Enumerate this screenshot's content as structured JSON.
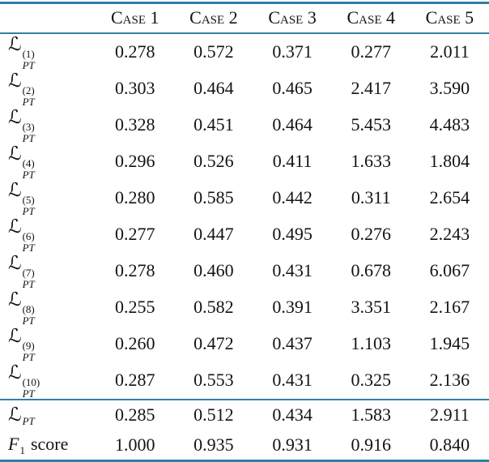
{
  "accent_rule_color": "#2e81a4",
  "table": {
    "columns": [
      "Case 1",
      "Case 2",
      "Case 3",
      "Case 4",
      "Case 5"
    ],
    "corner_label": "",
    "rows": [
      {
        "label": {
          "base": "ℒ",
          "base_style": "script",
          "sub": "PT",
          "sup": "(1)"
        },
        "values": [
          "0.278",
          "0.572",
          "0.371",
          "0.277",
          "2.011"
        ]
      },
      {
        "label": {
          "base": "ℒ",
          "base_style": "script",
          "sub": "PT",
          "sup": "(2)"
        },
        "values": [
          "0.303",
          "0.464",
          "0.465",
          "2.417",
          "3.590"
        ]
      },
      {
        "label": {
          "base": "ℒ",
          "base_style": "script",
          "sub": "PT",
          "sup": "(3)"
        },
        "values": [
          "0.328",
          "0.451",
          "0.464",
          "5.453",
          "4.483"
        ]
      },
      {
        "label": {
          "base": "ℒ",
          "base_style": "script",
          "sub": "PT",
          "sup": "(4)"
        },
        "values": [
          "0.296",
          "0.526",
          "0.411",
          "1.633",
          "1.804"
        ]
      },
      {
        "label": {
          "base": "ℒ",
          "base_style": "script",
          "sub": "PT",
          "sup": "(5)"
        },
        "values": [
          "0.280",
          "0.585",
          "0.442",
          "0.311",
          "2.654"
        ]
      },
      {
        "label": {
          "base": "ℒ",
          "base_style": "script",
          "sub": "PT",
          "sup": "(6)"
        },
        "values": [
          "0.277",
          "0.447",
          "0.495",
          "0.276",
          "2.243"
        ]
      },
      {
        "label": {
          "base": "ℒ",
          "base_style": "script",
          "sub": "PT",
          "sup": "(7)"
        },
        "values": [
          "0.278",
          "0.460",
          "0.431",
          "0.678",
          "6.067"
        ]
      },
      {
        "label": {
          "base": "ℒ",
          "base_style": "script",
          "sub": "PT",
          "sup": "(8)"
        },
        "values": [
          "0.255",
          "0.582",
          "0.391",
          "3.351",
          "2.167"
        ]
      },
      {
        "label": {
          "base": "ℒ",
          "base_style": "script",
          "sub": "PT",
          "sup": "(9)"
        },
        "values": [
          "0.260",
          "0.472",
          "0.437",
          "1.103",
          "1.945"
        ]
      },
      {
        "label": {
          "base": "ℒ",
          "base_style": "script",
          "sub": "PT",
          "sup": "(10)"
        },
        "values": [
          "0.287",
          "0.553",
          "0.431",
          "0.325",
          "2.136"
        ]
      },
      {
        "label": {
          "base": "ℒ",
          "base_style": "script",
          "sub": "PT",
          "sup": ""
        },
        "section": "summary",
        "values": [
          "0.285",
          "0.512",
          "0.434",
          "1.583",
          "2.911"
        ]
      },
      {
        "label": {
          "base": "F",
          "base_style": "italic",
          "sub": "1",
          "sup": "",
          "suffix": "score"
        },
        "section": "summary",
        "values": [
          "1.000",
          "0.935",
          "0.931",
          "0.916",
          "0.840"
        ]
      }
    ]
  }
}
